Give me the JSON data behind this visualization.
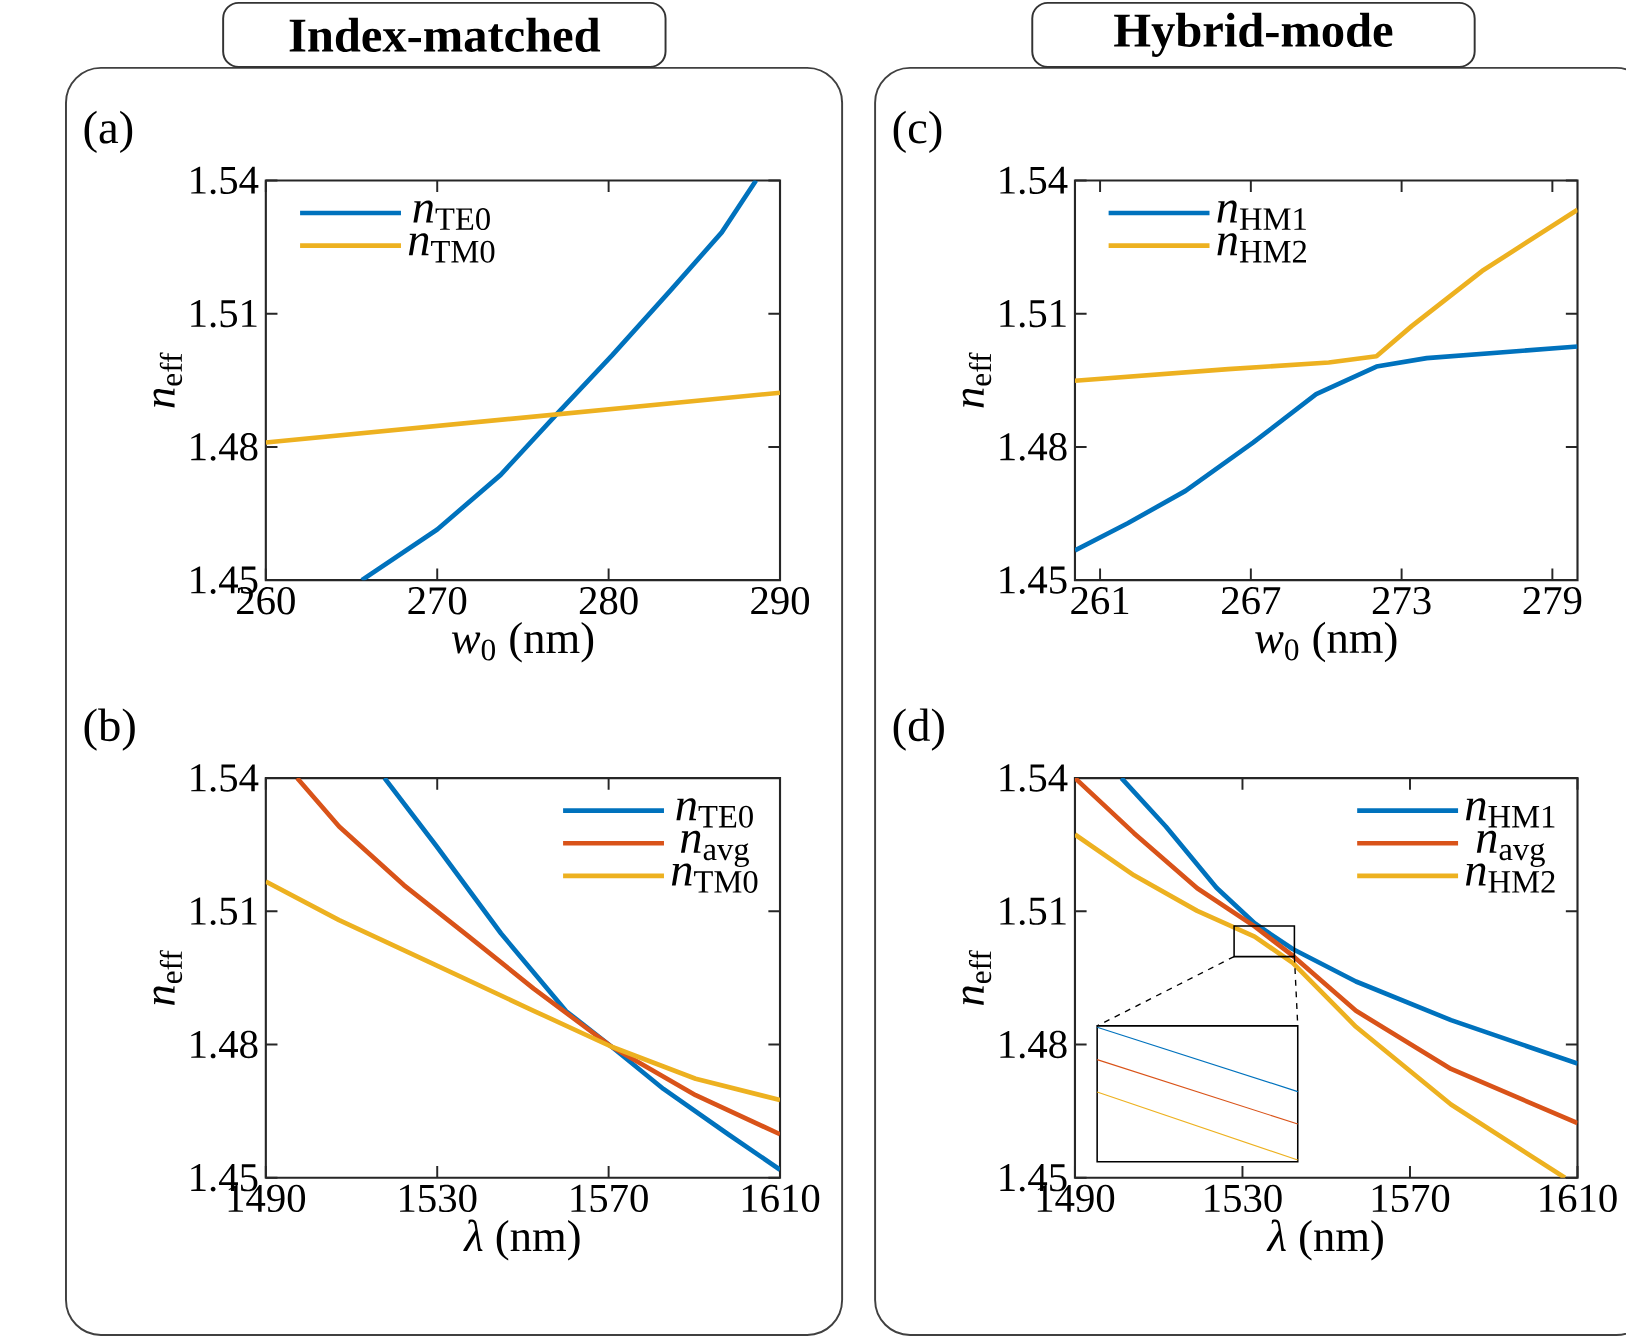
{
  "chart_data": [
    {
      "type": "line",
      "title": "(a)",
      "annotations": [
        "Index-matched"
      ],
      "xlabel": "*w*$_{0}$ (nm)",
      "ylabel": "*n*$_{eff}$",
      "xlim": [
        260,
        290
      ],
      "ylim": [
        1.45,
        1.54
      ],
      "xticks": [
        260,
        270,
        280,
        290
      ],
      "yticks": [
        1.45,
        1.48,
        1.51,
        1.54
      ],
      "legend": "top left",
      "series": [
        {
          "name": "*n*$_{TE0}$",
          "color": "#0072bd",
          "x": [
            265.6,
            270.0,
            273.7,
            277.0,
            280.2,
            283.6,
            286.6,
            288.6
          ],
          "values": [
            1.45,
            1.4614,
            1.4737,
            1.4875,
            1.5006,
            1.5152,
            1.5283,
            1.54
          ]
        },
        {
          "name": "*n*$_{TM0}$",
          "color": "#edb120",
          "x": [
            260,
            290
          ],
          "values": [
            1.481,
            1.4922
          ]
        }
      ]
    },
    {
      "type": "line",
      "title": "(b)",
      "xlabel": "*λ* (nm)",
      "ylabel": "*n*$_{eff}$",
      "xlim": [
        1490,
        1610
      ],
      "ylim": [
        1.45,
        1.54
      ],
      "xticks": [
        1490,
        1530,
        1570,
        1610
      ],
      "yticks": [
        1.45,
        1.48,
        1.51,
        1.54
      ],
      "legend": "top right",
      "series": [
        {
          "name": "*n*$_{TE0}$",
          "color": "#0072bd",
          "x": [
            1517.7,
            1529.8,
            1544.9,
            1560.1,
            1570.7,
            1582.8,
            1597.9,
            1610
          ],
          "values": [
            1.54,
            1.5247,
            1.505,
            1.4875,
            1.4795,
            1.47,
            1.4598,
            1.4518
          ]
        },
        {
          "name": "*n*$_{avg}$",
          "color": "#d95319",
          "x": [
            1497.3,
            1507.1,
            1522.2,
            1537.4,
            1552.5,
            1570.7,
            1590.3,
            1610
          ],
          "values": [
            1.54,
            1.5291,
            1.5159,
            1.5043,
            1.4926,
            1.4795,
            1.4686,
            1.4598
          ]
        },
        {
          "name": "*n*$_{TM0}$",
          "color": "#edb120",
          "x": [
            1490,
            1507.1,
            1529.8,
            1552.5,
            1570.7,
            1590.3,
            1610
          ],
          "values": [
            1.5167,
            1.508,
            1.4978,
            1.4876,
            1.4795,
            1.4723,
            1.4675
          ]
        }
      ]
    },
    {
      "type": "line",
      "title": "(c)",
      "annotations": [
        "Hybrid-mode"
      ],
      "xlabel": "*w*$_{0}$ (nm)",
      "ylabel": "*n*$_{eff}$",
      "xlim": [
        260,
        280
      ],
      "ylim": [
        1.45,
        1.54
      ],
      "xticks": [
        261,
        267,
        273,
        279
      ],
      "yticks": [
        1.45,
        1.48,
        1.51,
        1.54
      ],
      "legend": "top left",
      "series": [
        {
          "name": "*n*$_{HM1}$",
          "color": "#0072bd",
          "x": [
            260,
            262.1,
            264.4,
            267.1,
            269.6,
            272.0,
            274.0,
            280
          ],
          "values": [
            1.4567,
            1.4628,
            1.4701,
            1.481,
            1.4919,
            1.4981,
            1.5,
            1.5026
          ]
        },
        {
          "name": "*n*$_{HM2}$",
          "color": "#edb120",
          "x": [
            260,
            266.1,
            270.1,
            272.0,
            273.4,
            276.2,
            280
          ],
          "values": [
            1.4949,
            1.4975,
            1.499,
            1.5004,
            1.5072,
            1.5196,
            1.5334
          ]
        }
      ]
    },
    {
      "type": "line",
      "title": "(d)",
      "xlabel": "*λ* (nm)",
      "ylabel": "*n*$_{eff}$",
      "xlim": [
        1490,
        1610
      ],
      "ylim": [
        1.45,
        1.54
      ],
      "xticks": [
        1490,
        1530,
        1570,
        1610
      ],
      "yticks": [
        1.45,
        1.48,
        1.51,
        1.54
      ],
      "legend": "top right",
      "series": [
        {
          "name": "*n*$_{HM1}$",
          "color": "#0072bd",
          "x": [
            1501.1,
            1511.7,
            1523.8,
            1532.9,
            1542,
            1557.1,
            1579.8,
            1610
          ],
          "values": [
            1.54,
            1.5291,
            1.5153,
            1.5073,
            1.5015,
            1.4942,
            1.4855,
            1.4757
          ]
        },
        {
          "name": "*n*$_{avg}$",
          "color": "#d95319",
          "x": [
            1490,
            1504.1,
            1519.2,
            1532.9,
            1542,
            1557.1,
            1579.8,
            1610
          ],
          "values": [
            1.54,
            1.5276,
            1.5152,
            1.5066,
            1.5,
            1.4876,
            1.4745,
            1.4623
          ]
        },
        {
          "name": "*n*$_{HM2}$",
          "color": "#edb120",
          "x": [
            1490,
            1504.1,
            1519.2,
            1532.9,
            1542,
            1557.1,
            1579.8,
            1607
          ],
          "values": [
            1.5273,
            1.5181,
            1.5101,
            1.5043,
            1.4984,
            1.484,
            1.4665,
            1.45
          ]
        }
      ]
    }
  ]
}
